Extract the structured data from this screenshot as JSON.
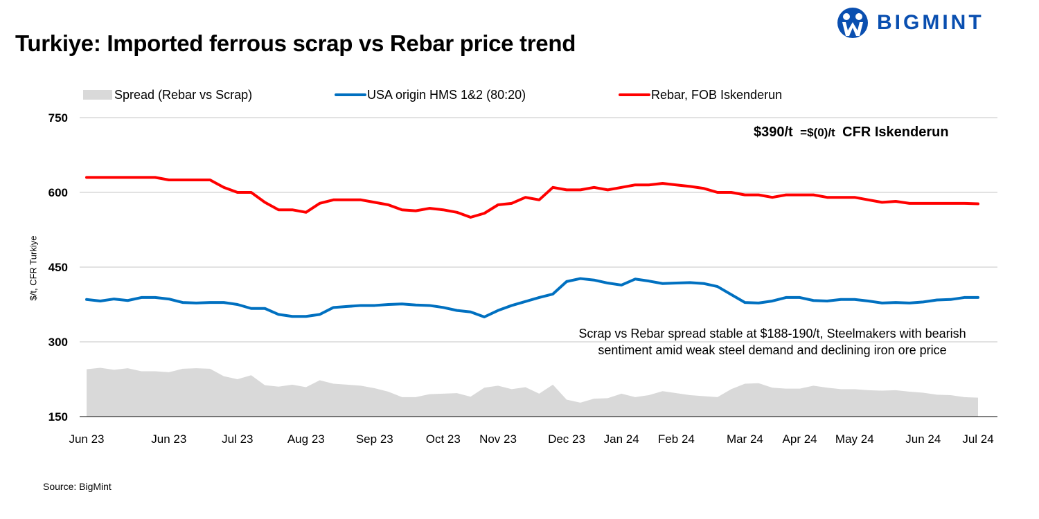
{
  "header": {
    "title": "Turkiye: Imported ferrous scrap vs Rebar price trend",
    "logo_text": "BIGMINT",
    "logo_color": "#0a4fb0"
  },
  "footer": {
    "source": "Source: BigMint"
  },
  "callout": {
    "price": "$390/t",
    "change": "=$(0)/t",
    "basis": "CFR Iskenderun"
  },
  "chart_data": {
    "type": "line",
    "title": "Turkiye: Imported ferrous scrap vs Rebar price trend",
    "ylabel": "$/t, CFR Turkiye",
    "xlabel": "",
    "ylim": [
      150,
      750
    ],
    "yticks": [
      "150",
      "300",
      "450",
      "600",
      "750"
    ],
    "grid": true,
    "legend_position": "top",
    "x_tick_labels": [
      {
        "index": 0,
        "label": "Jun 23"
      },
      {
        "index": 6,
        "label": "Jun 23"
      },
      {
        "index": 11,
        "label": "Jul 23"
      },
      {
        "index": 16,
        "label": "Aug 23"
      },
      {
        "index": 21,
        "label": "Sep 23"
      },
      {
        "index": 26,
        "label": "Oct 23"
      },
      {
        "index": 30,
        "label": "Nov 23"
      },
      {
        "index": 35,
        "label": "Dec 23"
      },
      {
        "index": 39,
        "label": "Jan 24"
      },
      {
        "index": 43,
        "label": "Feb 24"
      },
      {
        "index": 48,
        "label": "Mar 24"
      },
      {
        "index": 52,
        "label": "Apr 24"
      },
      {
        "index": 56,
        "label": "May 24"
      },
      {
        "index": 61,
        "label": "Jun 24"
      },
      {
        "index": 65,
        "label": "Jul 24"
      }
    ],
    "annotation": [
      "Scrap vs Rebar spread stable at $188-190/t, Steelmakers with bearish",
      "sentiment amid weak steel demand and declining iron ore price"
    ],
    "series": [
      {
        "name": "Spread (Rebar vs Scrap)",
        "type": "area",
        "color": "#d9d9d9",
        "values": [
          245,
          248,
          244,
          247,
          241,
          241,
          239,
          246,
          247,
          246,
          231,
          225,
          233,
          213,
          210,
          214,
          209,
          223,
          216,
          214,
          212,
          207,
          200,
          189,
          189,
          195,
          196,
          197,
          190,
          208,
          212,
          205,
          209,
          196,
          214,
          184,
          178,
          186,
          187,
          196,
          189,
          193,
          201,
          197,
          193,
          191,
          189,
          205,
          216,
          217,
          208,
          206,
          206,
          212,
          208,
          205,
          205,
          203,
          202,
          203,
          200,
          198,
          194,
          193,
          189,
          188
        ]
      },
      {
        "name": "USA origin HMS 1&2 (80:20)",
        "type": "line",
        "color": "#0070c0",
        "values": [
          385,
          382,
          386,
          383,
          389,
          389,
          386,
          379,
          378,
          379,
          379,
          375,
          367,
          367,
          355,
          351,
          351,
          355,
          369,
          371,
          373,
          373,
          375,
          376,
          374,
          373,
          369,
          363,
          360,
          350,
          363,
          373,
          381,
          389,
          396,
          421,
          427,
          424,
          418,
          414,
          426,
          422,
          417,
          418,
          419,
          417,
          411,
          395,
          379,
          378,
          382,
          389,
          389,
          383,
          382,
          385,
          385,
          382,
          378,
          379,
          378,
          380,
          384,
          385,
          389,
          389
        ]
      },
      {
        "name": "Rebar, FOB Iskenderun",
        "type": "line",
        "color": "#ff0000",
        "values": [
          630,
          630,
          630,
          630,
          630,
          630,
          625,
          625,
          625,
          625,
          610,
          600,
          600,
          580,
          565,
          565,
          560,
          578,
          585,
          585,
          585,
          580,
          575,
          565,
          563,
          568,
          565,
          560,
          550,
          558,
          575,
          578,
          590,
          585,
          610,
          605,
          605,
          610,
          605,
          610,
          615,
          615,
          618,
          615,
          612,
          608,
          600,
          600,
          595,
          595,
          590,
          595,
          595,
          595,
          590,
          590,
          590,
          585,
          580,
          582,
          578,
          578,
          578,
          578,
          578,
          577
        ]
      }
    ]
  }
}
